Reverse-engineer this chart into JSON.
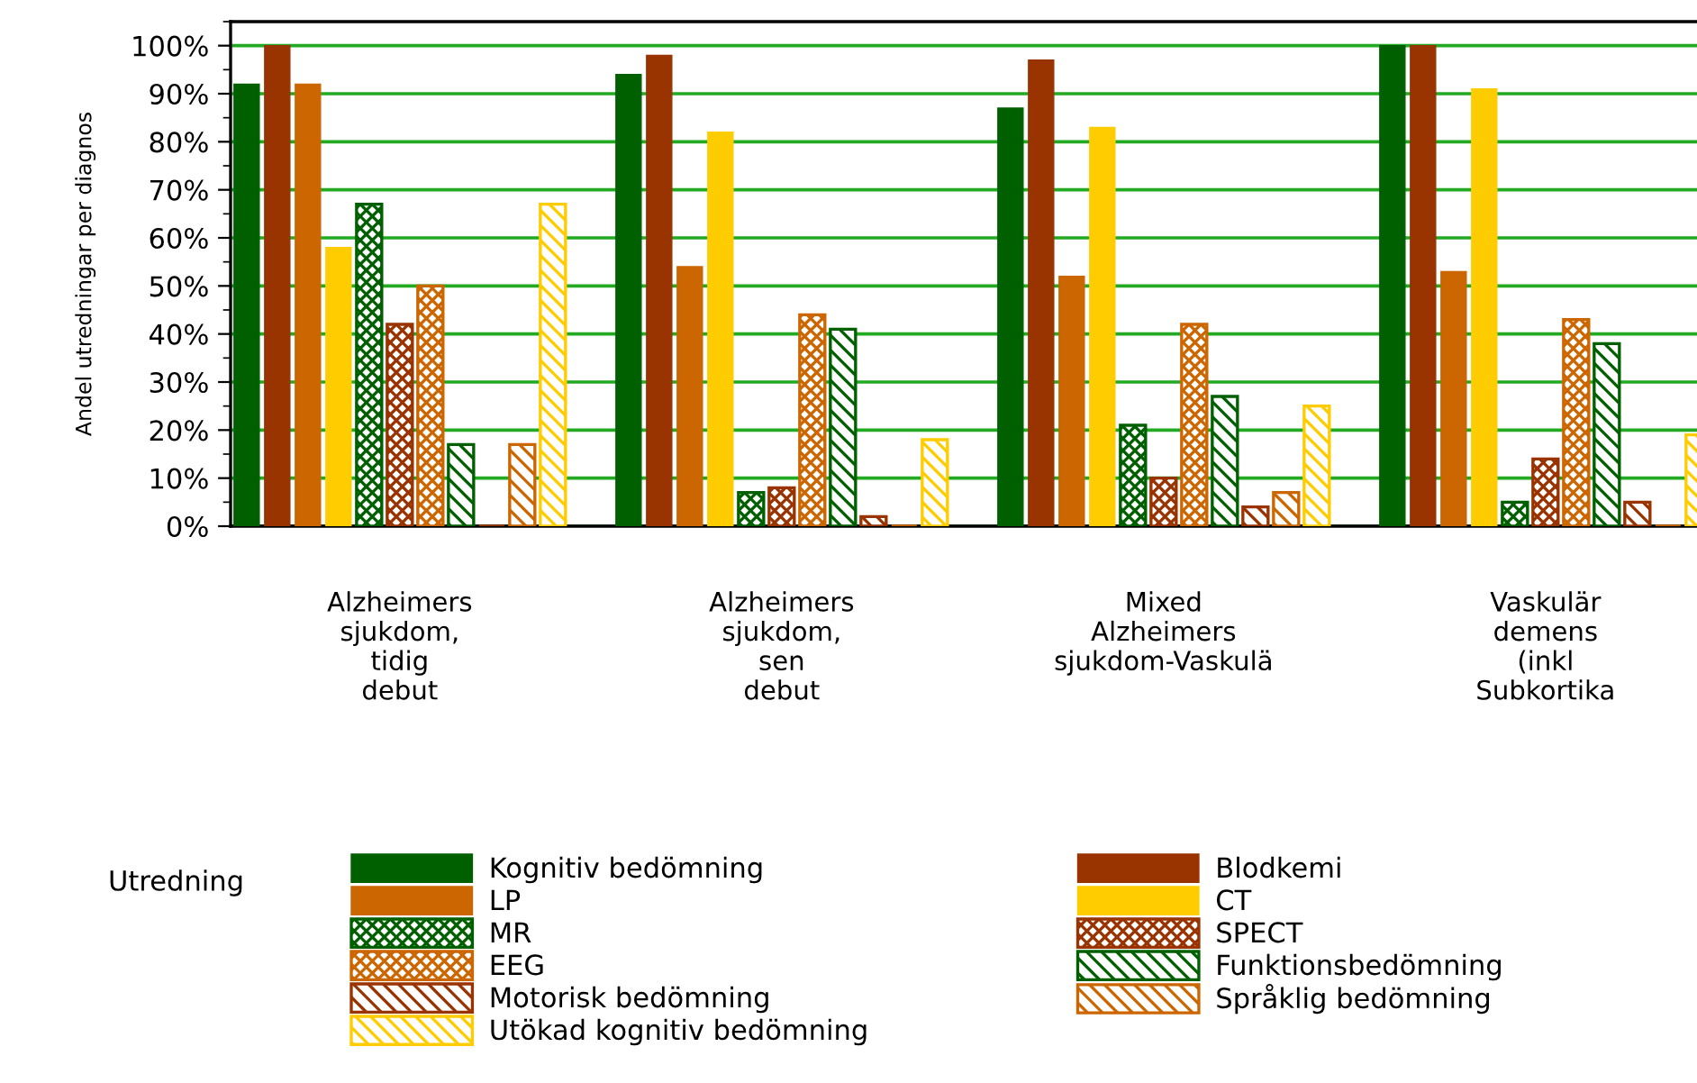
{
  "chart_data": {
    "type": "bar",
    "ylabel": "Andel utredningar per diagnos",
    "legend_title": "Utredning",
    "categories": [
      "Alzheimers\nsjukdom,\ntidig\ndebut",
      "Alzheimers\nsjukdom,\nsen\ndebut",
      "Mixed\nAlzheimers\nsjukdom-Vaskulä",
      "Vaskulär\ndemens\n(inkl\nSubkortika"
    ],
    "series": [
      {
        "name": "Kognitiv bedömning",
        "color": "#006000",
        "values": [
          92,
          94,
          87,
          100
        ]
      },
      {
        "name": "Blodkemi",
        "color": "#993300",
        "values": [
          100,
          98,
          97,
          100
        ]
      },
      {
        "name": "LP",
        "color": "#cc6600",
        "values": [
          92,
          54,
          52,
          53
        ]
      },
      {
        "name": "CT",
        "color": "#ffcc00",
        "values": [
          58,
          82,
          83,
          91
        ]
      },
      {
        "name": "MR",
        "color": "#006000",
        "values": [
          67,
          7,
          21,
          5
        ]
      },
      {
        "name": "SPECT",
        "color": "#993300",
        "values": [
          42,
          8,
          10,
          14
        ]
      },
      {
        "name": "EEG",
        "color": "#cc6600",
        "values": [
          50,
          44,
          42,
          43
        ]
      },
      {
        "name": "Funktionsbedömning",
        "color": "#006000",
        "values": [
          17,
          41,
          27,
          38
        ]
      },
      {
        "name": "Motorisk bedömning",
        "color": "#993300",
        "values": [
          0,
          2,
          4,
          5
        ]
      },
      {
        "name": "Språklig bedömning",
        "color": "#cc6600",
        "values": [
          17,
          0,
          7,
          0
        ]
      },
      {
        "name": "Utökad kognitiv bedömning",
        "color": "#ffcc00",
        "values": [
          67,
          18,
          25,
          19
        ]
      }
    ],
    "ylim": [
      0,
      105
    ],
    "yticks": [
      {
        "value": 0,
        "label": "0%"
      },
      {
        "value": 10,
        "label": "10%"
      },
      {
        "value": 20,
        "label": "20%"
      },
      {
        "value": 30,
        "label": "30%"
      },
      {
        "value": 40,
        "label": "40%"
      },
      {
        "value": 50,
        "label": "50%"
      },
      {
        "value": 60,
        "label": "60%"
      },
      {
        "value": 70,
        "label": "70%"
      },
      {
        "value": 80,
        "label": "80%"
      },
      {
        "value": 90,
        "label": "90%"
      },
      {
        "value": 100,
        "label": "100%"
      }
    ],
    "grid": "y",
    "legend": "bottom"
  }
}
